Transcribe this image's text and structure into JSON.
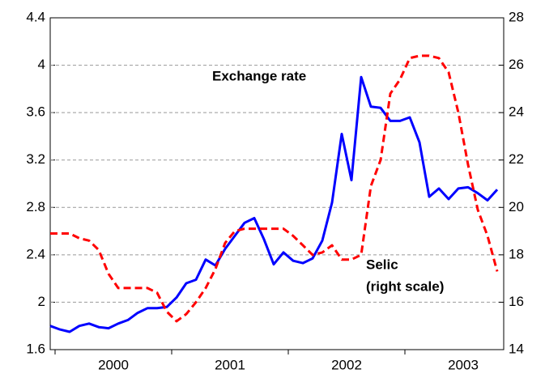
{
  "chart_data": {
    "type": "line",
    "categories": [
      null,
      null,
      null,
      null,
      null,
      null,
      "2000",
      null,
      null,
      null,
      null,
      null,
      null,
      null,
      null,
      null,
      null,
      null,
      "2001",
      null,
      null,
      null,
      null,
      null,
      null,
      null,
      null,
      null,
      null,
      null,
      "2002",
      null,
      null,
      null,
      null,
      null,
      null,
      null,
      null,
      null,
      null,
      null,
      "2003",
      null,
      null,
      null,
      null
    ],
    "series": [
      {
        "name": "Exchange rate",
        "color": "#0000ff",
        "dash": false,
        "values": [
          1.8,
          1.77,
          1.75,
          1.8,
          1.82,
          1.79,
          1.78,
          1.82,
          1.85,
          1.91,
          1.95,
          1.95,
          1.96,
          2.04,
          2.16,
          2.19,
          2.36,
          2.31,
          2.45,
          2.56,
          2.67,
          2.71,
          2.53,
          2.32,
          2.42,
          2.35,
          2.33,
          2.37,
          2.52,
          2.84,
          3.42,
          3.03,
          3.9,
          3.65,
          3.64,
          3.53,
          3.53,
          3.56,
          3.35,
          2.89,
          2.96,
          2.87,
          2.96,
          2.97,
          2.92,
          2.86,
          2.95
        ]
      },
      {
        "name": "Selic",
        "color": "#ff0000",
        "dash": true,
        "axis": "y2",
        "values": [
          18.9,
          18.9,
          18.9,
          18.7,
          18.6,
          18.2,
          17.2,
          16.6,
          16.6,
          16.6,
          16.6,
          16.4,
          15.6,
          15.2,
          15.5,
          16.0,
          16.6,
          17.4,
          18.5,
          19.0,
          19.1,
          19.1,
          19.1,
          19.1,
          19.1,
          18.8,
          18.4,
          18.0,
          18.1,
          18.4,
          17.8,
          17.8,
          18.0,
          20.9,
          22.0,
          24.8,
          25.4,
          26.3,
          26.4,
          26.4,
          26.3,
          25.7,
          24.0,
          21.8,
          19.9,
          18.8,
          17.3
        ]
      }
    ],
    "annotations": [
      "Exchange rate",
      "Selic",
      "(right scale)"
    ],
    "ylim": [
      1.6,
      4.4
    ],
    "yticks": [
      1.6,
      2.0,
      2.4,
      2.8,
      3.2,
      3.6,
      4.0,
      4.4
    ],
    "y2lim": [
      14,
      28
    ],
    "y2ticks": [
      14,
      16,
      18,
      20,
      22,
      24,
      26,
      28
    ],
    "grid": true
  }
}
